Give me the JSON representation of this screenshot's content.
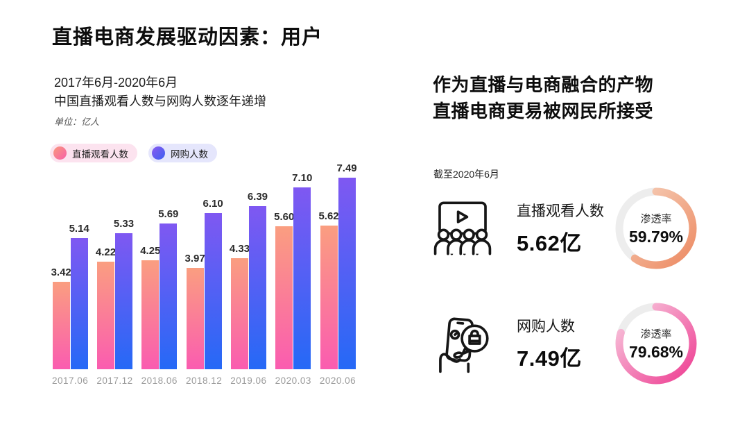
{
  "title": "直播电商发展驱动因素：用户",
  "left": {
    "subtitle_line1": "2017年6月-2020年6月",
    "subtitle_line2": "中国直播观看人数与网购人数逐年递增",
    "unit_note": "单位：亿人",
    "legend_pills": [
      {
        "pill_bg": "#fce3ef",
        "dot_from": "#f9997c",
        "dot_to": "#f75fa9"
      },
      {
        "pill_bg": "#e5e6fc",
        "dot_from": "#8a5bf0",
        "dot_to": "#3c5ff0"
      }
    ]
  },
  "chart_data": [
    {
      "type": "bar",
      "title": "2017年6月-2020年6月中国直播观看人数与网购人数逐年递增",
      "unit": "亿人",
      "categories": [
        "2017.06",
        "2017.12",
        "2018.06",
        "2018.12",
        "2019.06",
        "2020.03",
        "2020.06"
      ],
      "series": [
        {
          "name": "直播观看人数",
          "values": [
            3.42,
            4.22,
            4.25,
            3.97,
            4.33,
            5.6,
            5.62
          ],
          "labels": [
            "3.42",
            "4.22",
            "4.25",
            "3.97",
            "4.33",
            "5.60",
            "5.62"
          ],
          "gradient": [
            "#fa9e80",
            "#fa5cb0"
          ]
        },
        {
          "name": "网购人数",
          "values": [
            5.14,
            5.33,
            5.69,
            6.1,
            6.39,
            7.1,
            7.49
          ],
          "labels": [
            "5.14",
            "5.33",
            "5.69",
            "6.10",
            "6.39",
            "7.10",
            "7.49"
          ],
          "gradient": [
            "#7f58f2",
            "#2569f6"
          ]
        }
      ],
      "ylim": [
        0,
        7.49
      ],
      "grid": false,
      "legend_position": "top",
      "value_labels": true
    },
    {
      "type": "donut",
      "title": "渗透率",
      "value": 59.79,
      "display": "59.79%",
      "arc_colors": [
        "#f6d3be",
        "#ed8a62"
      ],
      "track_color": "#ededed"
    },
    {
      "type": "donut",
      "title": "渗透率",
      "value": 79.68,
      "display": "79.68%",
      "arc_colors": [
        "#f8cde0",
        "#ee3d92"
      ],
      "track_color": "#ededed"
    }
  ],
  "right": {
    "heading_line1": "作为直播与电商融合的产物",
    "heading_line2": "直播电商更易被网民所接受",
    "as_of": "截至2020年6月",
    "stats": [
      {
        "icon": "audience-screen-icon",
        "label": "直播观看人数",
        "value": "5.62亿"
      },
      {
        "icon": "phone-shopping-icon",
        "label": "网购人数",
        "value": "7.49亿"
      }
    ]
  }
}
